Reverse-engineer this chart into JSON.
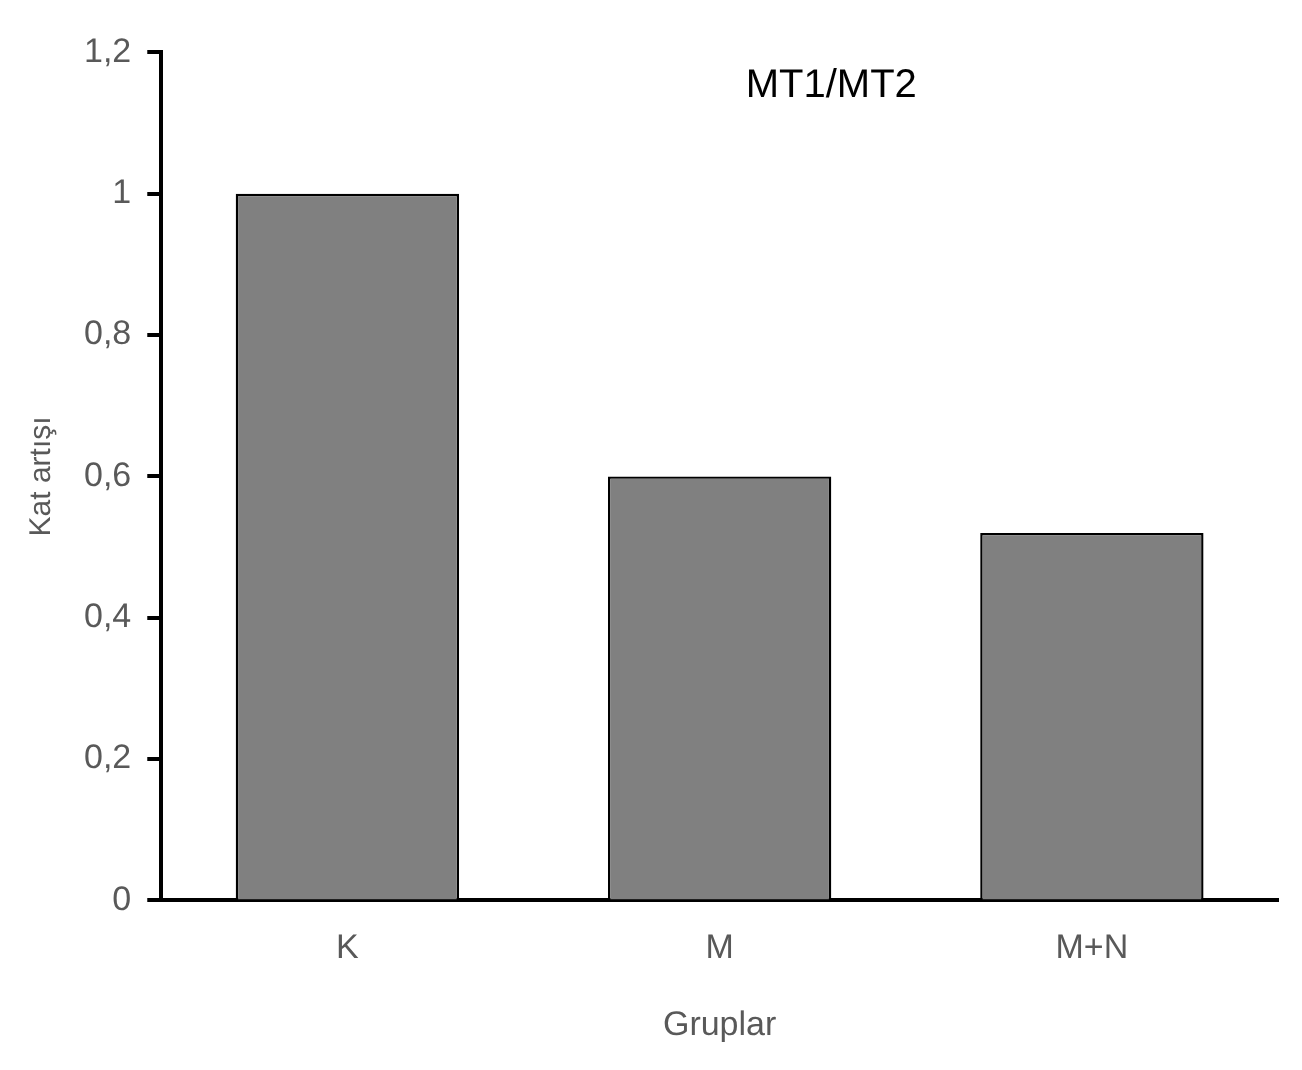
{
  "chart_data": {
    "type": "bar",
    "title": "MT1/MT2",
    "xlabel": "Gruplar",
    "ylabel": "Kat artışı",
    "categories": [
      "K",
      "M",
      "M+N"
    ],
    "series": [
      {
        "color": "#808080",
        "values": [
          1,
          0.6,
          0.52
        ]
      }
    ],
    "ylim": [
      0,
      1.2
    ],
    "yticks": [
      0,
      {
        "value": 0.2,
        "label": "0,2"
      },
      {
        "value": 0.4,
        "label": "0,4"
      },
      {
        "value": 0.6,
        "label": "0,6"
      },
      {
        "value": 0.8,
        "label": "0,8"
      },
      1,
      {
        "value": 1.2,
        "label": "1,2"
      }
    ],
    "grid": false,
    "legend": false
  }
}
